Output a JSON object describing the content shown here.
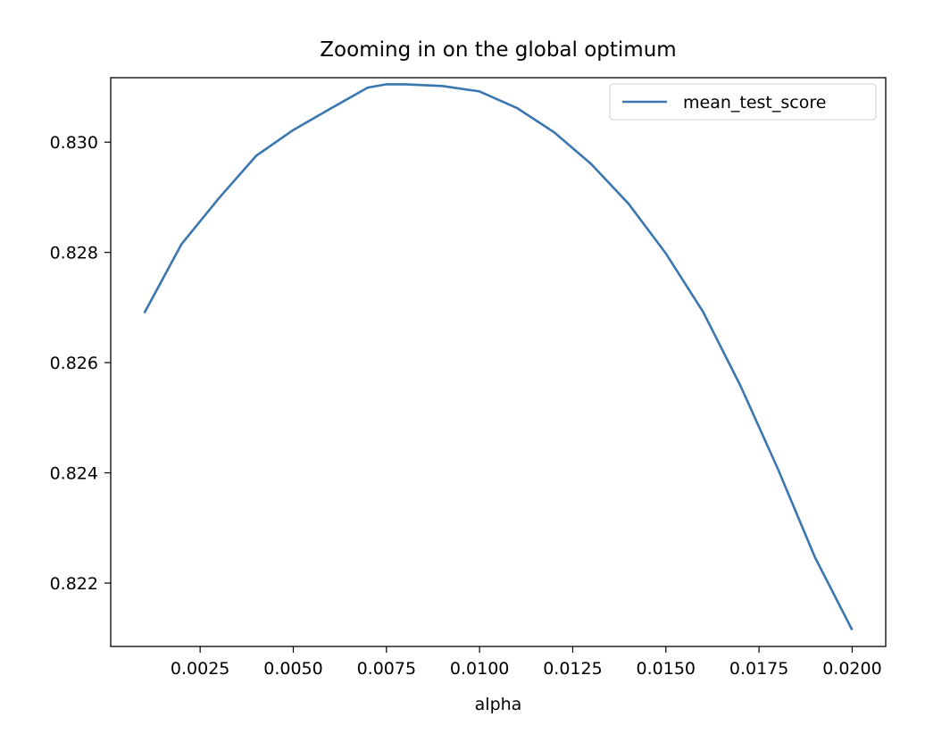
{
  "chart_data": {
    "type": "line",
    "title": "Zooming in on the global optimum",
    "xlabel": "alpha",
    "ylabel": "",
    "xlim": [
      0.0001,
      0.0209
    ],
    "ylim": [
      0.82085,
      0.83117
    ],
    "xticks": [
      0.0025,
      0.005,
      0.0075,
      0.01,
      0.0125,
      0.015,
      0.0175,
      0.02
    ],
    "xtick_labels": [
      "0.0025",
      "0.0050",
      "0.0075",
      "0.0100",
      "0.0125",
      "0.0150",
      "0.0175",
      "0.0200"
    ],
    "yticks": [
      0.822,
      0.824,
      0.826,
      0.828,
      0.83
    ],
    "ytick_labels": [
      "0.822",
      "0.824",
      "0.826",
      "0.828",
      "0.830"
    ],
    "grid": false,
    "legend_position": "upper right",
    "series": [
      {
        "name": "mean_test_score",
        "color": "#3a76af",
        "x": [
          0.001,
          0.002,
          0.003,
          0.004,
          0.005,
          0.006,
          0.007,
          0.0075,
          0.008,
          0.009,
          0.01,
          0.011,
          0.012,
          0.013,
          0.014,
          0.015,
          0.016,
          0.017,
          0.018,
          0.019,
          0.02
        ],
        "y": [
          0.8269,
          0.82815,
          0.82898,
          0.82975,
          0.83022,
          0.83061,
          0.83099,
          0.83105,
          0.83105,
          0.83102,
          0.83092,
          0.83062,
          0.83018,
          0.8296,
          0.82888,
          0.82798,
          0.82692,
          0.82558,
          0.82408,
          0.82247,
          0.82115
        ]
      }
    ]
  }
}
